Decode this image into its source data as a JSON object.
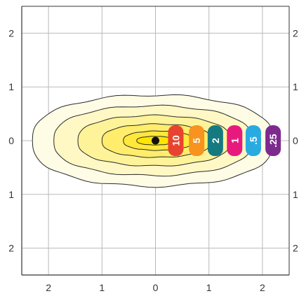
{
  "chart_data": {
    "type": "contour",
    "xlim": [
      -2.5,
      2.5
    ],
    "ylim": [
      -2.5,
      2.5
    ],
    "x_ticks": [
      {
        "value": -2,
        "label": "2"
      },
      {
        "value": -1,
        "label": "1"
      },
      {
        "value": 0,
        "label": "0"
      },
      {
        "value": 1,
        "label": "1"
      },
      {
        "value": 2,
        "label": "2"
      }
    ],
    "y_ticks": [
      {
        "value": 2,
        "label": "2"
      },
      {
        "value": 1,
        "label": "1"
      },
      {
        "value": 0,
        "label": "0"
      },
      {
        "value": -1,
        "label": "1"
      },
      {
        "value": -2,
        "label": "2"
      }
    ],
    "grid": true,
    "center": {
      "x": 0,
      "y": 0
    },
    "contours": [
      {
        "label": ".25",
        "x_min": -2.3,
        "x_max": 2.2,
        "half_height": 0.85,
        "fill": "#fffce6",
        "badge_color": "#7d2a8f"
      },
      {
        "label": ".5",
        "x_min": -1.9,
        "x_max": 1.8,
        "half_height": 0.65,
        "fill": "#fff8c4",
        "badge_color": "#29abe2"
      },
      {
        "label": "1",
        "x_min": -1.45,
        "x_max": 1.4,
        "half_height": 0.47,
        "fill": "#fff39a",
        "badge_color": "#e8197d"
      },
      {
        "label": "2",
        "x_min": -1.0,
        "x_max": 1.05,
        "half_height": 0.31,
        "fill": "#ffed6b",
        "badge_color": "#147a80"
      },
      {
        "label": "5",
        "x_min": -0.6,
        "x_max": 0.7,
        "half_height": 0.18,
        "fill": "#ffe83b",
        "badge_color": "#f7931e"
      },
      {
        "label": "10",
        "x_min": -0.35,
        "x_max": 0.35,
        "half_height": 0.08,
        "fill": "#ffe500",
        "badge_color": "#e8432e"
      }
    ],
    "badge_positions_x": [
      2.2,
      1.83,
      1.48,
      1.12,
      0.77,
      0.38
    ]
  }
}
